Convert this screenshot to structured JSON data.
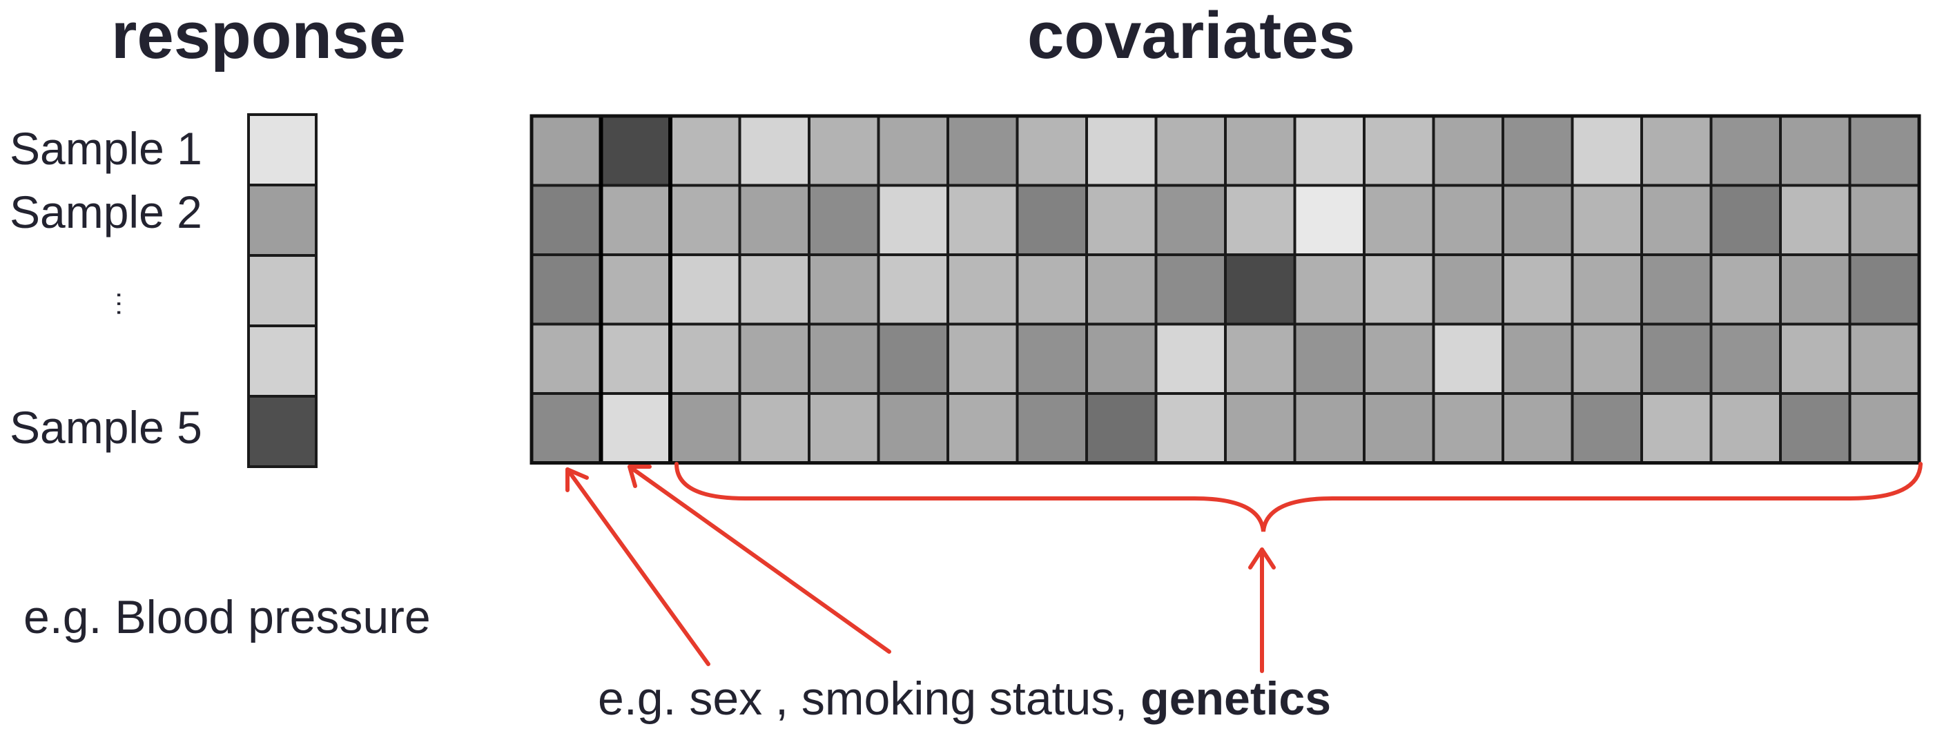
{
  "headings": {
    "response": "response",
    "covariates": "covariates"
  },
  "samples": {
    "sample1": "Sample 1",
    "sample2": "Sample 2",
    "sample5": "Sample 5",
    "ellipsis": "…"
  },
  "response_values": [
    0.89,
    0.62,
    0.78,
    0.82,
    0.31
  ],
  "covariate_matrix": [
    [
      0.63,
      0.29,
      0.72,
      0.83,
      0.7,
      0.66,
      0.58,
      0.71,
      0.83,
      0.7,
      0.68,
      0.82,
      0.75,
      0.65,
      0.57,
      0.82,
      0.69,
      0.58,
      0.62,
      0.57
    ],
    [
      0.5,
      0.67,
      0.69,
      0.64,
      0.55,
      0.83,
      0.75,
      0.51,
      0.72,
      0.59,
      0.75,
      0.91,
      0.68,
      0.66,
      0.63,
      0.71,
      0.66,
      0.5,
      0.73,
      0.65
    ],
    [
      0.51,
      0.7,
      0.81,
      0.77,
      0.66,
      0.78,
      0.72,
      0.7,
      0.67,
      0.55,
      0.29,
      0.69,
      0.74,
      0.63,
      0.72,
      0.67,
      0.58,
      0.68,
      0.63,
      0.51
    ],
    [
      0.69,
      0.76,
      0.74,
      0.66,
      0.62,
      0.53,
      0.7,
      0.57,
      0.62,
      0.84,
      0.69,
      0.58,
      0.66,
      0.84,
      0.63,
      0.68,
      0.55,
      0.58,
      0.71,
      0.67
    ],
    [
      0.54,
      0.86,
      0.61,
      0.72,
      0.7,
      0.61,
      0.68,
      0.55,
      0.44,
      0.79,
      0.65,
      0.64,
      0.63,
      0.66,
      0.65,
      0.54,
      0.73,
      0.71,
      0.52,
      0.64
    ]
  ],
  "examples": {
    "response": "e.g. Blood pressure",
    "covariates_prefix": "e.g. sex",
    "covariates_sep1": " , ",
    "covariates_middle": "smoking status",
    "covariates_sep2": ", ",
    "covariates_bold": "genetics"
  },
  "colors": {
    "annotation": "#e63a2c",
    "text": "#232330",
    "cell_border": "#1a1a1a"
  }
}
